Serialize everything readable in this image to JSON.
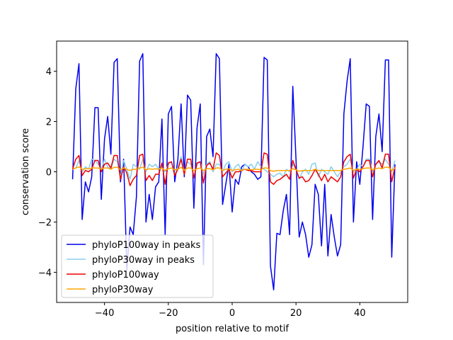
{
  "chart_data": {
    "type": "line",
    "title": "",
    "xlabel": "position relative to motif",
    "ylabel": "conservation score",
    "xlim": [
      -55,
      55
    ],
    "ylim": [
      -5.2,
      5.2
    ],
    "xticks": [
      -40,
      -20,
      0,
      20,
      40
    ],
    "yticks": [
      -4,
      -2,
      0,
      2,
      4
    ],
    "xtick_labels": [
      "−40",
      "−20",
      "0",
      "20",
      "40"
    ],
    "ytick_labels": [
      "−4",
      "−2",
      "0",
      "2",
      "4"
    ],
    "grid": false,
    "legend_position": "lower-left",
    "series": [
      {
        "name": "phyloP100way in peaks",
        "color": "#0000ee",
        "x_start": -50,
        "x_step": 1,
        "values": [
          -0.3,
          3.3,
          4.3,
          -1.9,
          -0.4,
          -0.8,
          -0.2,
          2.55,
          2.55,
          -1.1,
          1.3,
          2.2,
          0.7,
          4.35,
          4.5,
          -0.4,
          0.5,
          -3.9,
          -2.2,
          -2.5,
          -1.0,
          4.4,
          4.7,
          -2.0,
          -0.9,
          -1.9,
          -0.6,
          -0.4,
          2.1,
          -2.5,
          2.3,
          2.6,
          -0.4,
          0.5,
          2.7,
          -0.2,
          3.05,
          2.85,
          -1.45,
          1.75,
          2.7,
          -3.7,
          1.4,
          1.7,
          0.6,
          4.7,
          4.5,
          -1.3,
          -0.5,
          0.3,
          -1.6,
          -0.3,
          -0.5,
          0.2,
          0.3,
          0.2,
          0.0,
          -0.1,
          -0.3,
          -0.2,
          4.55,
          4.45,
          -3.75,
          -4.7,
          -2.45,
          -2.5,
          -1.55,
          -0.9,
          -2.5,
          3.4,
          0.5,
          -2.6,
          -2.0,
          -2.5,
          -3.4,
          -2.9,
          -0.5,
          -0.9,
          -2.95,
          -0.5,
          -3.35,
          -1.7,
          -2.6,
          -3.35,
          -2.9,
          2.3,
          3.6,
          4.5,
          -2.0,
          0.4,
          -0.5,
          1.0,
          2.7,
          2.6,
          -1.9,
          1.4,
          2.3,
          0.8,
          4.45,
          4.45,
          -3.4,
          0.3
        ]
      },
      {
        "name": "phyloP30way in peaks",
        "color": "#87ceeb",
        "x_start": -50,
        "x_step": 1,
        "values": [
          0.1,
          0.15,
          0.45,
          0.0,
          0.2,
          0.1,
          0.5,
          0.45,
          0.3,
          0.1,
          0.5,
          0.2,
          0.1,
          0.5,
          0.4,
          -0.2,
          0.45,
          0.1,
          -0.3,
          0.3,
          0.2,
          0.1,
          0.5,
          0.0,
          0.3,
          0.2,
          0.3,
          0.1,
          0.2,
          0.0,
          0.3,
          0.4,
          -0.1,
          0.2,
          0.6,
          0.0,
          0.4,
          0.3,
          -0.2,
          0.3,
          0.4,
          -0.1,
          0.3,
          0.4,
          0.0,
          0.3,
          0.3,
          0.0,
          0.3,
          0.4,
          0.0,
          0.2,
          0.3,
          0.0,
          0.3,
          0.2,
          0.3,
          0.1,
          0.4,
          0.2,
          0.1,
          0.0,
          -0.1,
          -0.2,
          -0.1,
          -0.05,
          -0.2,
          0.1,
          0.0,
          0.3,
          0.1,
          -0.3,
          0.0,
          0.1,
          -0.1,
          0.3,
          0.35,
          -0.2,
          0.1,
          0.0,
          -0.1,
          0.2,
          0.0,
          -0.2,
          0.0,
          0.2,
          0.3,
          0.5,
          0.0,
          0.1,
          0.3,
          0.2,
          0.5,
          0.5,
          0.0,
          0.3,
          0.4,
          0.3,
          0.5,
          0.3,
          0.0,
          0.45
        ]
      },
      {
        "name": "phyloP100way",
        "color": "#ee0000",
        "x_start": -50,
        "x_step": 1,
        "values": [
          0.1,
          0.5,
          0.65,
          -0.15,
          0.05,
          0.0,
          0.1,
          0.45,
          0.45,
          0.0,
          0.3,
          0.35,
          0.15,
          0.65,
          0.65,
          -0.3,
          0.2,
          -0.05,
          -0.55,
          -0.3,
          -0.15,
          0.65,
          0.7,
          -0.35,
          -0.15,
          -0.35,
          -0.1,
          -0.1,
          0.35,
          -0.5,
          0.35,
          0.4,
          -0.15,
          0.1,
          0.5,
          -0.1,
          0.5,
          0.5,
          -0.25,
          0.35,
          0.4,
          -0.45,
          0.25,
          0.35,
          0.1,
          0.75,
          0.65,
          -0.2,
          -0.05,
          0.1,
          -0.25,
          0.0,
          0.0,
          0.05,
          0.1,
          0.05,
          0.05,
          0.0,
          0.0,
          0.0,
          0.75,
          0.7,
          -0.4,
          -0.5,
          -0.35,
          -0.3,
          -0.2,
          -0.1,
          -0.3,
          0.45,
          0.1,
          -0.25,
          -0.2,
          -0.4,
          -0.35,
          -0.15,
          0.1,
          -0.1,
          -0.35,
          -0.1,
          -0.4,
          -0.2,
          -0.3,
          -0.4,
          -0.2,
          0.4,
          0.6,
          0.7,
          -0.25,
          0.1,
          0.0,
          0.2,
          0.45,
          0.45,
          -0.2,
          0.3,
          0.45,
          0.15,
          0.7,
          0.7,
          -0.4,
          0.2
        ]
      },
      {
        "name": "phyloP30way",
        "color": "#ffa500",
        "x_start": -50,
        "x_step": 1,
        "values": [
          0.1,
          0.15,
          0.2,
          0.1,
          0.12,
          0.12,
          0.15,
          0.15,
          0.15,
          0.1,
          0.15,
          0.15,
          0.1,
          0.18,
          0.18,
          0.08,
          0.15,
          0.1,
          0.05,
          0.1,
          0.1,
          0.15,
          0.18,
          0.08,
          0.12,
          0.1,
          0.12,
          0.1,
          0.15,
          0.05,
          0.12,
          0.15,
          0.08,
          0.1,
          0.18,
          0.05,
          0.15,
          0.15,
          0.05,
          0.12,
          0.15,
          0.05,
          0.12,
          0.12,
          0.08,
          0.15,
          0.15,
          0.05,
          0.1,
          0.12,
          0.05,
          0.08,
          0.1,
          0.05,
          0.1,
          0.1,
          0.08,
          0.1,
          0.1,
          0.08,
          0.15,
          0.15,
          0.05,
          0.02,
          0.05,
          0.05,
          0.05,
          0.05,
          0.05,
          0.12,
          0.08,
          0.02,
          0.05,
          0.05,
          0.05,
          0.05,
          0.1,
          0.05,
          0.05,
          0.05,
          0.05,
          0.05,
          0.05,
          0.05,
          0.05,
          0.1,
          0.12,
          0.15,
          0.05,
          0.1,
          0.1,
          0.12,
          0.15,
          0.15,
          0.08,
          0.12,
          0.15,
          0.12,
          0.18,
          0.18,
          0.05,
          0.15
        ]
      }
    ]
  }
}
